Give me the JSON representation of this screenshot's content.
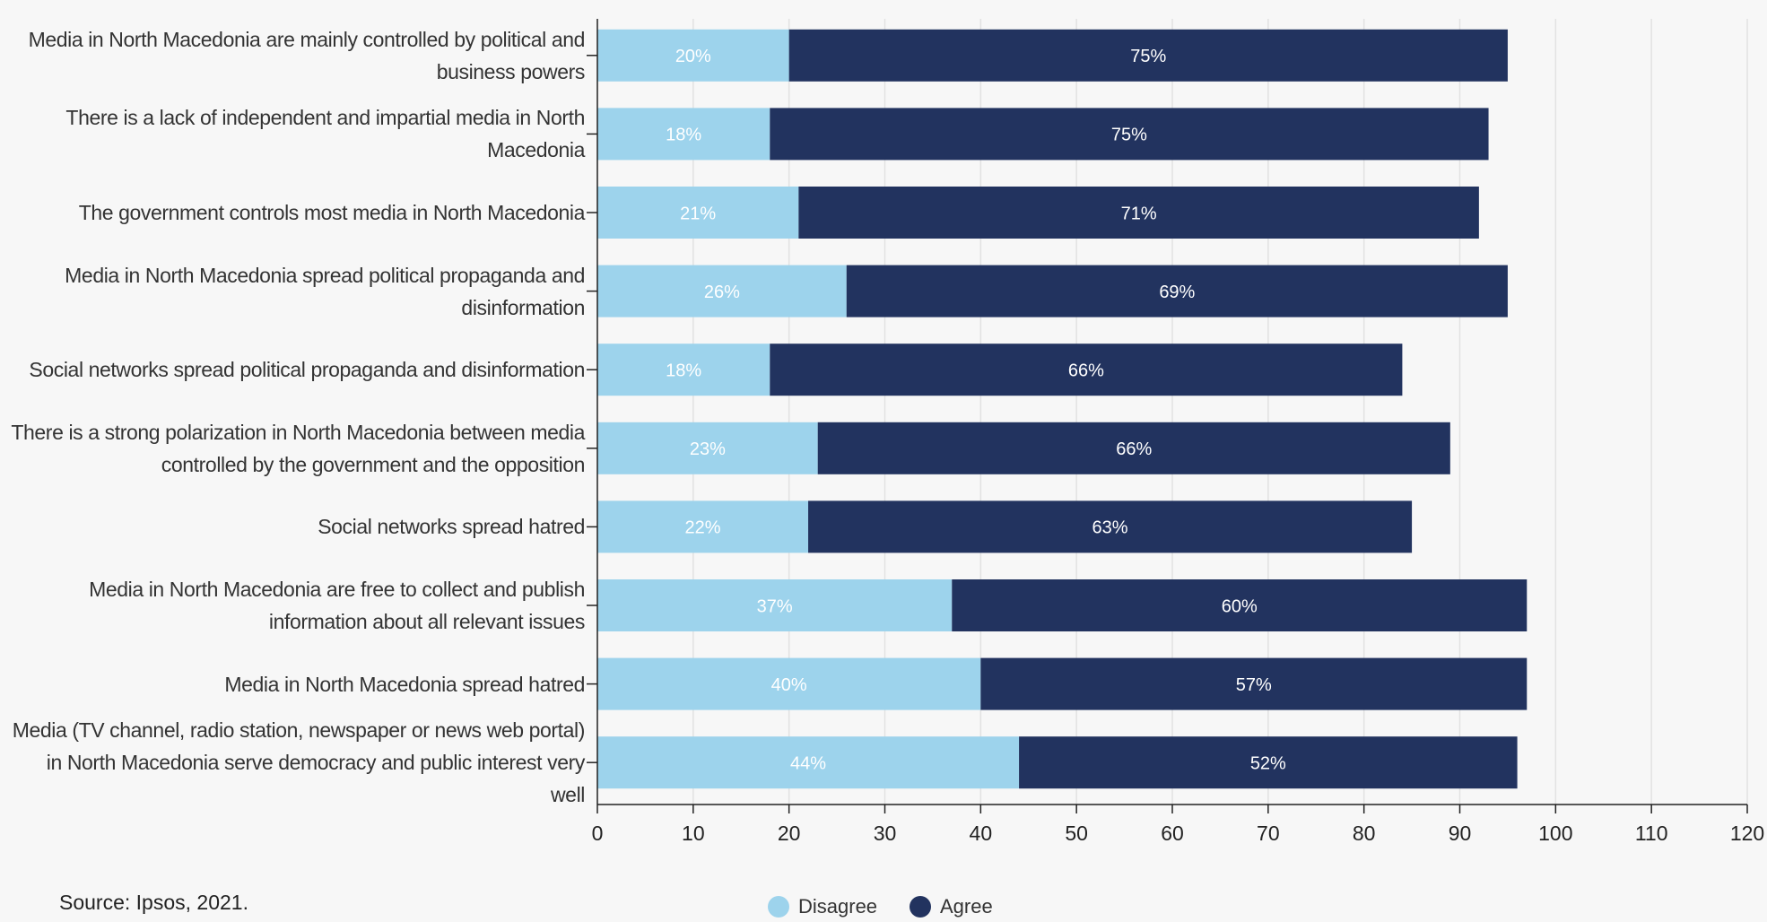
{
  "chart_data": {
    "type": "stacked_barh",
    "categories": [
      "Media in North Macedonia are mainly controlled by political and business powers",
      "There is a lack of independent and impartial media in North Macedonia",
      "The government controls most media in North Macedonia",
      "Media in North Macedonia spread political propaganda and disinformation",
      "Social networks spread political propaganda and disinformation",
      "There is a strong polarization in North Macedonia between media controlled by the government and the opposition",
      "Social networks spread hatred",
      "Media in North Macedonia are free to collect and publish information about all relevant issues",
      "Media in North Macedonia spread hatred",
      "Media (TV channel, radio station, newspaper or news web portal) in North Macedonia serve democracy and public interest very well"
    ],
    "series": [
      {
        "name": "Disagree",
        "color": "#9dd3ec",
        "values": [
          20,
          18,
          21,
          26,
          18,
          23,
          22,
          37,
          40,
          44
        ],
        "value_labels": [
          "20%",
          "18%",
          "21%",
          "26%",
          "18%",
          "23%",
          "22%",
          "37%",
          "40%",
          "44%"
        ]
      },
      {
        "name": "Agree",
        "color": "#22335f",
        "values": [
          75,
          75,
          71,
          69,
          66,
          66,
          63,
          60,
          57,
          52
        ],
        "value_labels": [
          "75%",
          "75%",
          "71%",
          "69%",
          "66%",
          "66%",
          "63%",
          "60%",
          "57%",
          "52%"
        ]
      }
    ],
    "xlim": [
      0,
      120
    ],
    "xticks": [
      0,
      10,
      20,
      30,
      40,
      50,
      60,
      70,
      80,
      90,
      100,
      110,
      120
    ],
    "grid": true,
    "source": "Source: Ipsos, 2021."
  }
}
